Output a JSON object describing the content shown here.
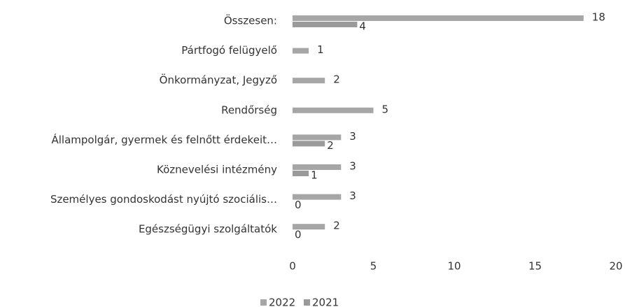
{
  "chart_data": {
    "type": "hbar",
    "categories": [
      "Összesen:",
      "Pártfogó felügyelő",
      "Önkormányzat, Jegyző",
      "Rendőrség",
      "Állampolgár, gyermek és felnőtt érdekeit…",
      "Köznevelési intézmény",
      "Személyes gondoskodást nyújtó szociális…",
      "Egészségügyi szolgáltatók"
    ],
    "series": [
      {
        "name": "2022",
        "color": "#a6a6a6",
        "values": [
          18,
          1,
          2,
          5,
          3,
          3,
          3,
          2
        ]
      },
      {
        "name": "2021",
        "color": "#9a9a9a",
        "values": [
          4,
          null,
          null,
          null,
          2,
          1,
          0,
          0
        ]
      }
    ],
    "xlim": [
      0,
      20
    ],
    "xticks": [
      0,
      5,
      10,
      15,
      20
    ],
    "legend": "bottom"
  }
}
